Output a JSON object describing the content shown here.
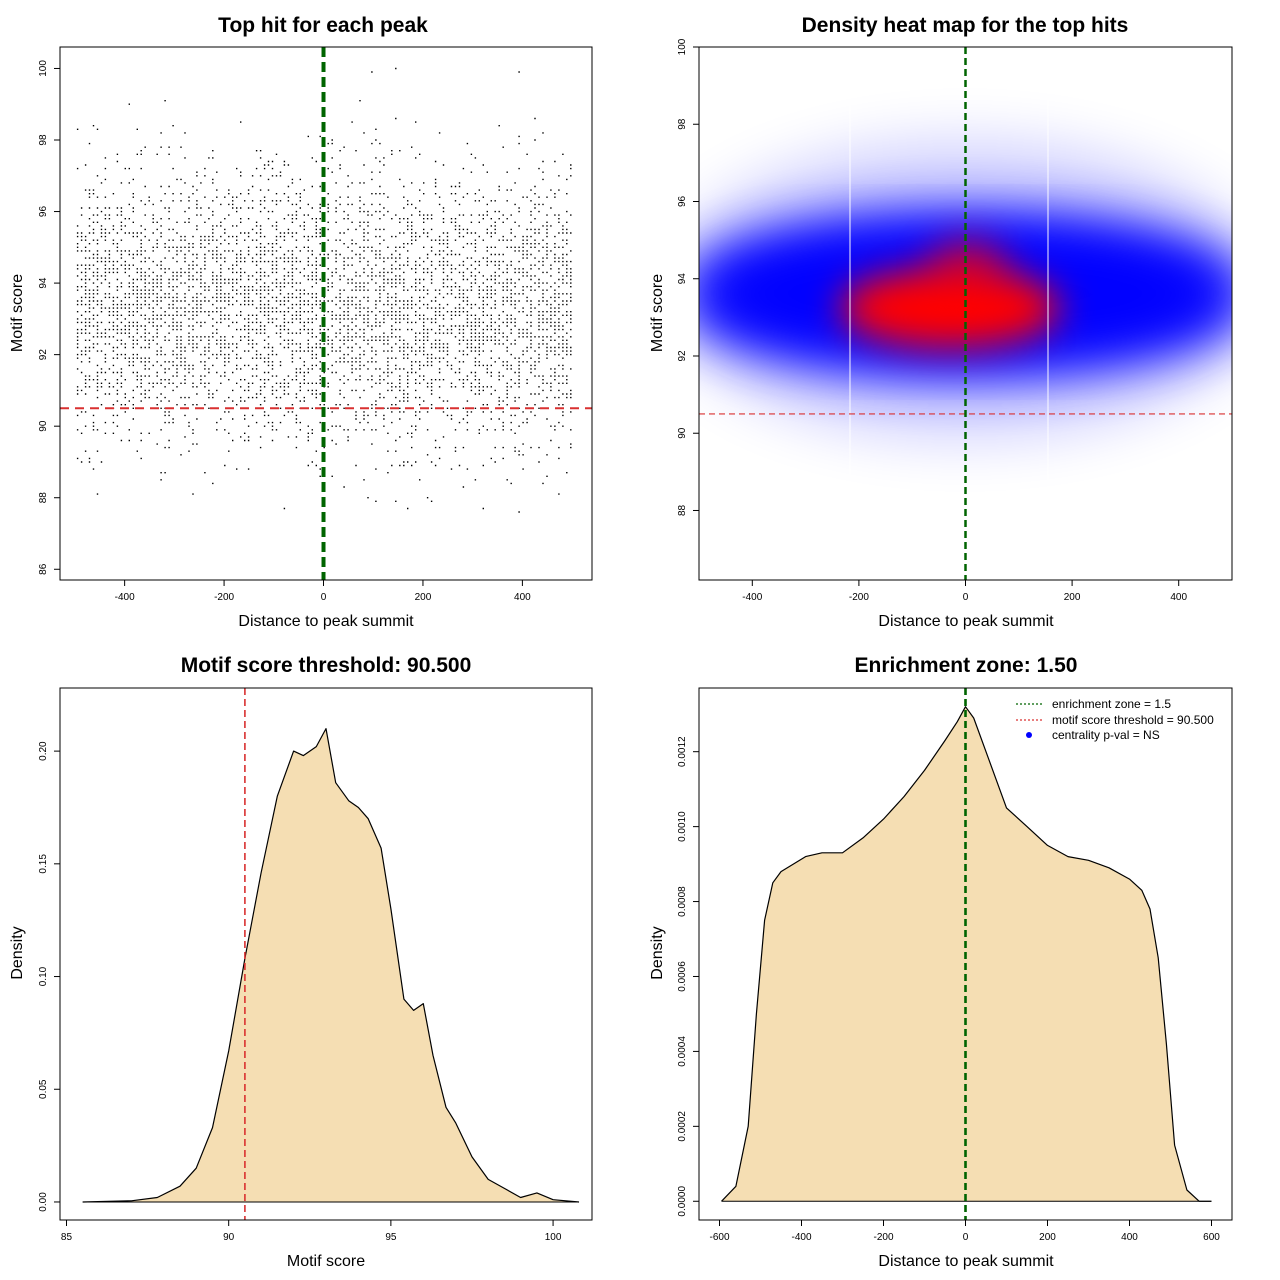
{
  "colors": {
    "threshold": "#d93030",
    "summit": "#006400",
    "density_fill": "#f5deb3",
    "heat_low": "#0000ff",
    "heat_high": "#ff0000",
    "legend_dot": "#0000ff"
  },
  "chart_data": [
    {
      "type": "scatter",
      "title": "Top hit for each peak",
      "xlabel": "Distance to peak summit",
      "ylabel": "Motif score",
      "xlim": [
        -530,
        540
      ],
      "ylim": [
        85.7,
        100.6
      ],
      "xticks": [
        -400,
        -200,
        0,
        200,
        400
      ],
      "yticks": [
        86,
        88,
        90,
        92,
        94,
        96,
        98,
        100
      ],
      "threshold_y": 90.5,
      "summit_x": 0,
      "points_note": "dense point cloud, x from -500 to 500, y concentrated 91-96",
      "x_range": [
        -500,
        500
      ],
      "y_center": 93.3
    },
    {
      "type": "heatmap",
      "title": "Density heat map for the top hits",
      "xlabel": "Distance to peak summit",
      "ylabel": "Motif score",
      "xlim": [
        -500,
        500
      ],
      "ylim": [
        86.2,
        100
      ],
      "xticks": [
        -400,
        -200,
        0,
        200,
        400
      ],
      "yticks": [
        88,
        90,
        92,
        94,
        96,
        98,
        100
      ],
      "threshold_y": 90.5,
      "summit_x": 0,
      "hotspot": {
        "x": -20,
        "y": 93.2
      }
    },
    {
      "type": "area",
      "title": "Motif score threshold: 90.500",
      "xlabel": "Motif score",
      "ylabel": "Density",
      "xlim": [
        84.8,
        101.2
      ],
      "ylim": [
        -0.008,
        0.228
      ],
      "xticks": [
        85,
        90,
        95,
        100
      ],
      "yticks": [
        0.0,
        0.05,
        0.1,
        0.15,
        0.2
      ],
      "ytick_labels": [
        "0.00",
        "0.05",
        "0.10",
        "0.15",
        "0.20"
      ],
      "threshold_x": 90.5,
      "x": [
        85.5,
        87.0,
        87.8,
        88.5,
        89.0,
        89.5,
        90.0,
        90.5,
        91.0,
        91.5,
        92.0,
        92.3,
        92.7,
        93.0,
        93.3,
        93.7,
        94.0,
        94.3,
        94.7,
        95.0,
        95.4,
        95.7,
        96.0,
        96.3,
        96.7,
        97.0,
        97.5,
        98.0,
        98.5,
        99.0,
        99.5,
        100.0,
        100.8
      ],
      "y": [
        0.0,
        0.0005,
        0.002,
        0.007,
        0.015,
        0.033,
        0.067,
        0.108,
        0.146,
        0.18,
        0.2,
        0.198,
        0.202,
        0.21,
        0.186,
        0.178,
        0.175,
        0.17,
        0.157,
        0.13,
        0.09,
        0.085,
        0.088,
        0.065,
        0.042,
        0.035,
        0.02,
        0.01,
        0.006,
        0.002,
        0.004,
        0.001,
        0.0
      ]
    },
    {
      "type": "area",
      "title": "Enrichment zone: 1.50",
      "xlabel": "Distance to peak summit",
      "ylabel": "Density",
      "xlim": [
        -650,
        650
      ],
      "ylim": [
        -5e-05,
        0.00137
      ],
      "xticks": [
        -600,
        -400,
        -200,
        0,
        200,
        400,
        600
      ],
      "yticks": [
        0.0,
        0.0002,
        0.0004,
        0.0006,
        0.0008,
        0.001,
        0.0012
      ],
      "ytick_labels": [
        "0.0000",
        "0.0002",
        "0.0004",
        "0.0006",
        "0.0008",
        "0.0010",
        "0.0012"
      ],
      "summit_x": 0,
      "x": [
        -595,
        -560,
        -530,
        -510,
        -490,
        -470,
        -450,
        -420,
        -390,
        -350,
        -300,
        -250,
        -200,
        -150,
        -100,
        -50,
        -20,
        0,
        20,
        50,
        100,
        150,
        200,
        250,
        300,
        350,
        400,
        430,
        450,
        470,
        490,
        510,
        540,
        570,
        600
      ],
      "y": [
        0.0,
        4e-05,
        0.0002,
        0.0005,
        0.00075,
        0.00085,
        0.00088,
        0.0009,
        0.00092,
        0.00093,
        0.00093,
        0.00097,
        0.00102,
        0.00108,
        0.00115,
        0.00123,
        0.00128,
        0.00132,
        0.00129,
        0.0012,
        0.00105,
        0.001,
        0.00095,
        0.00092,
        0.00091,
        0.00089,
        0.00086,
        0.00083,
        0.00078,
        0.00065,
        0.00042,
        0.00015,
        3e-05,
        0.0,
        0.0
      ],
      "legend": [
        {
          "label": "enrichment zone = 1.5",
          "style": "dotted",
          "color": "#006400"
        },
        {
          "label": "motif score threshold = 90.500",
          "style": "dotted",
          "color": "#d93030"
        },
        {
          "label": "centrality p-val = NS",
          "style": "dot",
          "color": "#0000ff"
        }
      ]
    }
  ]
}
